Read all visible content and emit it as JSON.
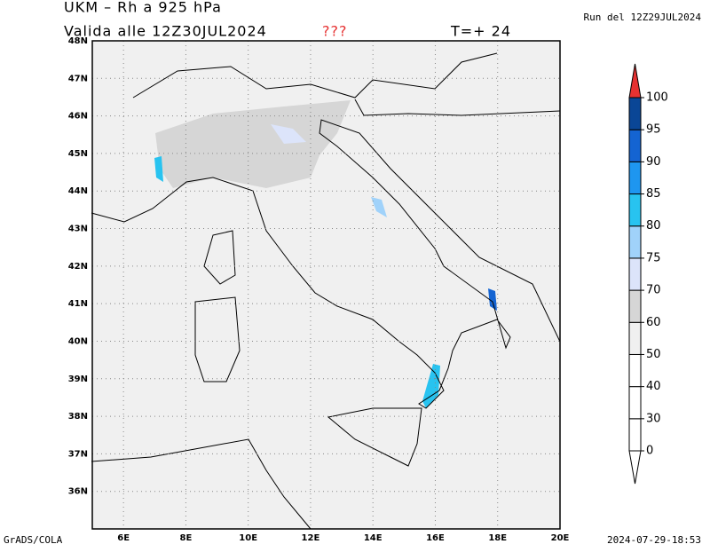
{
  "header": {
    "title": "UKM – Rh a 925 hPa",
    "valid": "Valida alle 12Z30JUL2024",
    "flag": "???",
    "lead": "T=+ 24",
    "run": "Run del 12Z29JUL2024"
  },
  "map": {
    "lat_labels": [
      {
        "value": 48,
        "label": "48N"
      },
      {
        "value": 47,
        "label": "47N"
      },
      {
        "value": 46,
        "label": "46N"
      },
      {
        "value": 45,
        "label": "45N"
      },
      {
        "value": 44,
        "label": "44N"
      },
      {
        "value": 43,
        "label": "43N"
      },
      {
        "value": 42,
        "label": "42N"
      },
      {
        "value": 41,
        "label": "41N"
      },
      {
        "value": 40,
        "label": "40N"
      },
      {
        "value": 39,
        "label": "39N"
      },
      {
        "value": 38,
        "label": "38N"
      },
      {
        "value": 37,
        "label": "37N"
      },
      {
        "value": 36,
        "label": "36N"
      }
    ],
    "lon_labels": [
      {
        "value": 6,
        "label": "6E"
      },
      {
        "value": 8,
        "label": "8E"
      },
      {
        "value": 10,
        "label": "10E"
      },
      {
        "value": 12,
        "label": "12E"
      },
      {
        "value": 14,
        "label": "14E"
      },
      {
        "value": 16,
        "label": "16E"
      },
      {
        "value": 18,
        "label": "18E"
      },
      {
        "value": 20,
        "label": "20E"
      }
    ],
    "lonlim": [
      5,
      20
    ],
    "latlim": [
      35,
      48
    ]
  },
  "colorbar": {
    "levels": [
      0,
      30,
      40,
      50,
      60,
      70,
      75,
      80,
      85,
      90,
      95,
      100
    ],
    "colors": [
      "#ffffff",
      "#ffffff",
      "#ffffff",
      "#ffffff",
      "#f0f0f0",
      "#d6d6d6",
      "#dce4fa",
      "#a0d2fa",
      "#28c3f0",
      "#1e96f0",
      "#1464d2",
      "#0a4696",
      "#e63232"
    ]
  },
  "footer": {
    "left": "GrADS/COLA",
    "right": "2024-07-29-18:53"
  }
}
